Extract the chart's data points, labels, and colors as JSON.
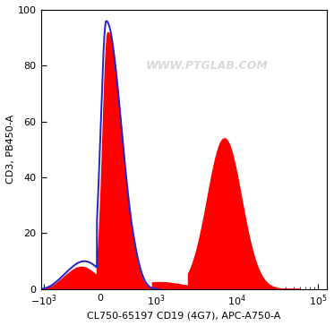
{
  "title": "",
  "xlabel": "CL750-65197 CD19 (4G7), APC-A750-A",
  "ylabel": "CD3, PB450-A",
  "ylim": [
    0,
    100
  ],
  "yticks": [
    0,
    20,
    40,
    60,
    80,
    100
  ],
  "watermark": "WWW.PTGLAB.COM",
  "watermark_color": "#cccccc",
  "fill_color": "#ff0000",
  "fill_alpha": 1.0,
  "line_color": "#2222cc",
  "line_width": 1.4,
  "background_color": "#ffffff",
  "plot_bg_color": "#ffffff",
  "border_color": "#000000",
  "linthresh": 500,
  "linscale": 0.35
}
